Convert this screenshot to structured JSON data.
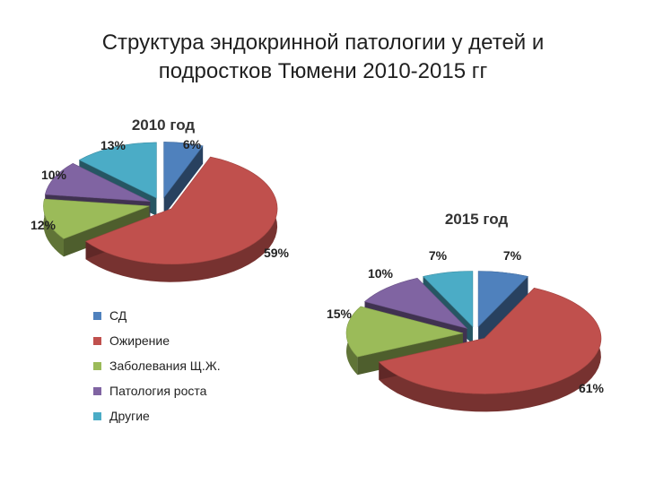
{
  "slide": {
    "title_line1": "Структура эндокринной патологии у детей и",
    "title_line2": "подростков Тюмени 2010-2015 гг"
  },
  "legend": [
    {
      "label": "СД",
      "color": "#4f81bd"
    },
    {
      "label": "Ожирение",
      "color": "#c0504d"
    },
    {
      "label": "Заболевания Щ.Ж.",
      "color": "#9bbb59"
    },
    {
      "label": "Патология роста",
      "color": "#8064a2"
    },
    {
      "label": "Другие",
      "color": "#4bacc6"
    }
  ],
  "chart_data": [
    {
      "type": "pie",
      "title": "2010 год",
      "categories": [
        "СД",
        "Ожирение",
        "Заболевания Щ.Ж.",
        "Патология роста",
        "Другие"
      ],
      "values": [
        6,
        59,
        12,
        10,
        13
      ],
      "data_labels": [
        "6%",
        "59%",
        "12%",
        "10%",
        "13%"
      ],
      "legend_position": "bottom-left",
      "exploded": true,
      "style": "3d"
    },
    {
      "type": "pie",
      "title": "2015 год",
      "categories": [
        "СД",
        "Ожирение",
        "Заболевания Щ.Ж.",
        "Патология роста",
        "Другие"
      ],
      "values": [
        7,
        61,
        15,
        10,
        7
      ],
      "data_labels": [
        "7%",
        "61%",
        "15%",
        "10%",
        "7%"
      ],
      "legend_position": "bottom-left",
      "exploded": true,
      "style": "3d"
    }
  ]
}
